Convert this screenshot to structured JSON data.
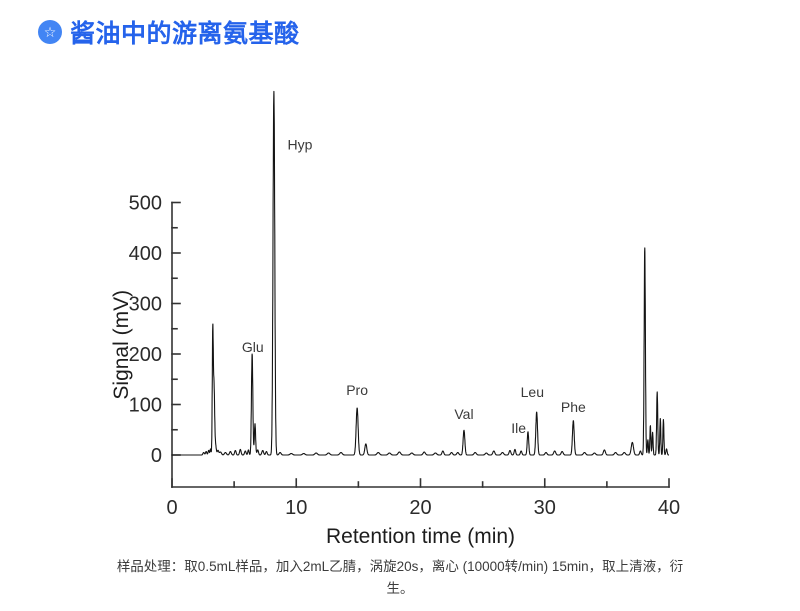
{
  "header": {
    "icon": "star-badge-icon",
    "icon_bg_color": "#4285f4",
    "icon_glyph": "☆",
    "title": "酱油中的游离氨基酸",
    "title_color": "#2563eb"
  },
  "chart_data": {
    "type": "line",
    "title": "",
    "xlabel": "Retention time (min)",
    "ylabel": "Signal (mV)",
    "xlim": [
      0,
      40
    ],
    "ylim": [
      0,
      500
    ],
    "x_major_ticks": [
      0,
      10,
      20,
      30,
      40
    ],
    "x_minor_ticks": [
      5,
      15,
      25,
      35
    ],
    "y_major_ticks": [
      0,
      100,
      200,
      300,
      400,
      500
    ],
    "y_minor_ticks": [
      50,
      150,
      250,
      350,
      450
    ],
    "grid": false,
    "legend": false,
    "trace_color": "#141414",
    "axis_color": "#333333",
    "label_color": "#3a3a3a",
    "peaks_note": "each peak = [retention_time_min, height_mV, sigma_min]; Hyp peak exceeds the 0-500 axis range",
    "peaks": [
      [
        2.55,
        5,
        0.06
      ],
      [
        2.75,
        7,
        0.05
      ],
      [
        2.95,
        9,
        0.05
      ],
      [
        3.1,
        12,
        0.04
      ],
      [
        3.28,
        240,
        0.04
      ],
      [
        3.38,
        135,
        0.05
      ],
      [
        3.5,
        20,
        0.06
      ],
      [
        3.7,
        9,
        0.06
      ],
      [
        3.9,
        6,
        0.08
      ],
      [
        4.3,
        5,
        0.08
      ],
      [
        4.7,
        7,
        0.07
      ],
      [
        5.1,
        9,
        0.06
      ],
      [
        5.5,
        11,
        0.06
      ],
      [
        5.9,
        8,
        0.06
      ],
      [
        6.15,
        10,
        0.05
      ],
      [
        6.45,
        200,
        0.055
      ],
      [
        6.68,
        62,
        0.05
      ],
      [
        6.9,
        10,
        0.06
      ],
      [
        7.3,
        9,
        0.07
      ],
      [
        7.6,
        7,
        0.06
      ],
      [
        8.2,
        720,
        0.07
      ],
      [
        8.7,
        5,
        0.08
      ],
      [
        9.6,
        3,
        0.1
      ],
      [
        10.6,
        3,
        0.1
      ],
      [
        11.6,
        4,
        0.1
      ],
      [
        12.6,
        4,
        0.1
      ],
      [
        13.6,
        5,
        0.1
      ],
      [
        14.9,
        93,
        0.08
      ],
      [
        15.6,
        22,
        0.08
      ],
      [
        16.6,
        5,
        0.1
      ],
      [
        17.5,
        4,
        0.1
      ],
      [
        18.3,
        6,
        0.1
      ],
      [
        19.3,
        4,
        0.1
      ],
      [
        20.3,
        6,
        0.09
      ],
      [
        21.2,
        4,
        0.1
      ],
      [
        21.8,
        8,
        0.07
      ],
      [
        22.5,
        5,
        0.08
      ],
      [
        23.0,
        5,
        0.08
      ],
      [
        23.5,
        49,
        0.07
      ],
      [
        24.4,
        5,
        0.09
      ],
      [
        25.3,
        4,
        0.09
      ],
      [
        25.9,
        8,
        0.08
      ],
      [
        26.6,
        5,
        0.09
      ],
      [
        27.2,
        9,
        0.07
      ],
      [
        27.6,
        11,
        0.06
      ],
      [
        28.1,
        8,
        0.06
      ],
      [
        28.65,
        46,
        0.06
      ],
      [
        29.35,
        85,
        0.07
      ],
      [
        30.1,
        5,
        0.08
      ],
      [
        30.8,
        8,
        0.08
      ],
      [
        31.4,
        7,
        0.08
      ],
      [
        32.3,
        68,
        0.07
      ],
      [
        33.2,
        5,
        0.09
      ],
      [
        34.0,
        4,
        0.09
      ],
      [
        34.8,
        10,
        0.08
      ],
      [
        35.7,
        5,
        0.09
      ],
      [
        36.4,
        5,
        0.09
      ],
      [
        37.05,
        25,
        0.09
      ],
      [
        37.7,
        8,
        0.06
      ],
      [
        38.05,
        410,
        0.05
      ],
      [
        38.3,
        30,
        0.04
      ],
      [
        38.5,
        58,
        0.04
      ],
      [
        38.68,
        45,
        0.04
      ],
      [
        39.05,
        125,
        0.045
      ],
      [
        39.3,
        72,
        0.04
      ],
      [
        39.55,
        70,
        0.04
      ],
      [
        39.8,
        12,
        0.05
      ]
    ],
    "annotations": [
      {
        "text": "Hyp",
        "rt": 10.3,
        "mv": 615
      },
      {
        "text": "Glu",
        "rt": 6.5,
        "mv": 214
      },
      {
        "text": "Pro",
        "rt": 14.9,
        "mv": 129
      },
      {
        "text": "Val",
        "rt": 23.5,
        "mv": 81
      },
      {
        "text": "Ile",
        "rt": 27.9,
        "mv": 53
      },
      {
        "text": "Leu",
        "rt": 29.0,
        "mv": 125
      },
      {
        "text": "Phe",
        "rt": 32.3,
        "mv": 95
      }
    ]
  },
  "caption": {
    "lines": [
      "样品处理：取0.5mL样品，加入2mL乙腈，涡旋20s，离心 (10000转/min) 15min，取上清液，衍",
      "生。"
    ]
  }
}
